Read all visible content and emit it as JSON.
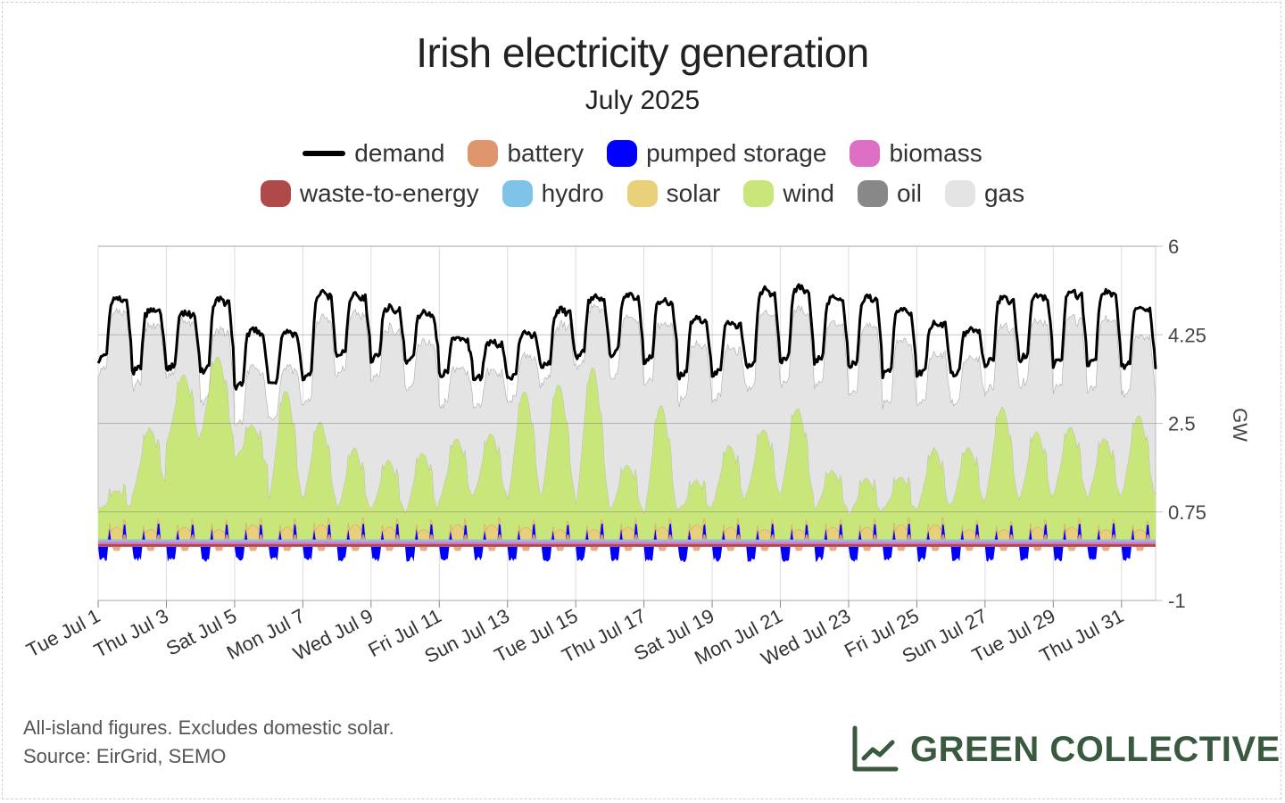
{
  "chart_data": {
    "type": "area",
    "title": "Irish electricity generation",
    "subtitle": "July 2025",
    "ylabel": "GW",
    "ylim": [
      -1,
      6
    ],
    "yticks": [
      "6",
      "4.25",
      "2.5",
      "0.75",
      "-1"
    ],
    "ytick_values": [
      6,
      4.25,
      2.5,
      0.75,
      -1
    ],
    "x_start": "2025-07-01",
    "x_days": 31,
    "xticks": [
      "Tue Jul 1",
      "Thu Jul 3",
      "Sat Jul 5",
      "Mon Jul 7",
      "Wed Jul 9",
      "Fri Jul 11",
      "Sun Jul 13",
      "Tue Jul 15",
      "Thu Jul 17",
      "Sat Jul 19",
      "Mon Jul 21",
      "Wed Jul 23",
      "Fri Jul 25",
      "Sun Jul 27",
      "Tue Jul 29",
      "Thu Jul 31"
    ],
    "legend_placement": "top",
    "grid": true,
    "series": [
      {
        "name": "demand",
        "color": "#000000",
        "kind": "line"
      },
      {
        "name": "battery",
        "color": "#e0966c",
        "kind": "area"
      },
      {
        "name": "pumped storage",
        "color": "#0000ff",
        "kind": "area"
      },
      {
        "name": "biomass",
        "color": "#dd6fc4",
        "kind": "area"
      },
      {
        "name": "waste-to-energy",
        "color": "#b04a4a",
        "kind": "area"
      },
      {
        "name": "hydro",
        "color": "#7fc4e8",
        "kind": "area"
      },
      {
        "name": "solar",
        "color": "#e8d07a",
        "kind": "area"
      },
      {
        "name": "wind",
        "color": "#c8e67a",
        "kind": "area"
      },
      {
        "name": "oil",
        "color": "#888888",
        "kind": "area"
      },
      {
        "name": "gas",
        "color": "#e4e4e4",
        "kind": "area"
      }
    ],
    "daily": {
      "demand_peak": [
        5.0,
        4.75,
        4.7,
        4.95,
        4.35,
        4.3,
        5.1,
        5.05,
        4.8,
        4.7,
        4.2,
        4.1,
        4.3,
        4.75,
        5.0,
        5.05,
        4.95,
        4.6,
        4.5,
        5.15,
        5.2,
        5.0,
        5.0,
        4.75,
        4.5,
        4.35,
        5.0,
        5.05,
        5.1,
        5.1,
        4.8
      ],
      "demand_low": [
        3.75,
        3.5,
        3.55,
        3.5,
        3.2,
        3.25,
        3.35,
        3.8,
        3.75,
        3.7,
        3.45,
        3.35,
        3.35,
        3.6,
        3.8,
        3.85,
        3.7,
        3.4,
        3.45,
        3.6,
        3.7,
        3.7,
        3.6,
        3.45,
        3.45,
        3.45,
        3.65,
        3.75,
        3.65,
        3.65,
        3.6
      ],
      "wind_peak": [
        0.7,
        2.0,
        3.1,
        3.6,
        2.1,
        2.9,
        2.2,
        1.6,
        1.4,
        1.6,
        1.8,
        1.9,
        2.9,
        3.1,
        3.5,
        1.3,
        2.6,
        0.9,
        1.7,
        2.1,
        2.6,
        1.2,
        1.0,
        1.0,
        1.6,
        1.7,
        2.6,
        2.0,
        2.1,
        1.9,
        2.4
      ],
      "wind_low": [
        0.6,
        0.9,
        1.9,
        2.1,
        1.6,
        0.8,
        0.8,
        0.6,
        0.6,
        0.5,
        0.8,
        0.9,
        0.8,
        0.9,
        0.7,
        0.6,
        0.5,
        0.6,
        0.7,
        0.9,
        0.9,
        0.6,
        0.5,
        0.6,
        0.6,
        0.7,
        0.8,
        0.8,
        0.9,
        0.8,
        0.9
      ],
      "solar_peak": [
        0.25,
        0.2,
        0.25,
        0.2,
        0.3,
        0.25,
        0.3,
        0.3,
        0.25,
        0.2,
        0.3,
        0.3,
        0.25,
        0.2,
        0.2,
        0.25,
        0.25,
        0.3,
        0.25,
        0.2,
        0.2,
        0.25,
        0.25,
        0.3,
        0.3,
        0.2,
        0.2,
        0.25,
        0.25,
        0.2,
        0.2
      ],
      "gas_top_offset": [
        -0.25,
        -0.3,
        -0.15,
        -0.6,
        -0.75,
        -0.7,
        -0.5,
        -0.35,
        -0.4,
        -0.55,
        -0.6,
        -0.55,
        -0.45,
        -0.3,
        -0.2,
        -0.45,
        -0.45,
        -0.5,
        -0.5,
        -0.45,
        -0.45,
        -0.5,
        -0.55,
        -0.6,
        -0.6,
        -0.55,
        -0.55,
        -0.5,
        -0.5,
        -0.55,
        -0.55
      ]
    },
    "baseline": {
      "waste-to-energy": 0.05,
      "biomass": 0.05,
      "hydro": 0.04
    }
  },
  "footnote": {
    "line1": "All-island figures. Excludes domestic solar.",
    "line2": "Source: EirGrid, SEMO"
  },
  "brand": {
    "name": "GREEN COLLECTIVE",
    "icon": "line-chart-icon",
    "color": "#3a5a40"
  }
}
